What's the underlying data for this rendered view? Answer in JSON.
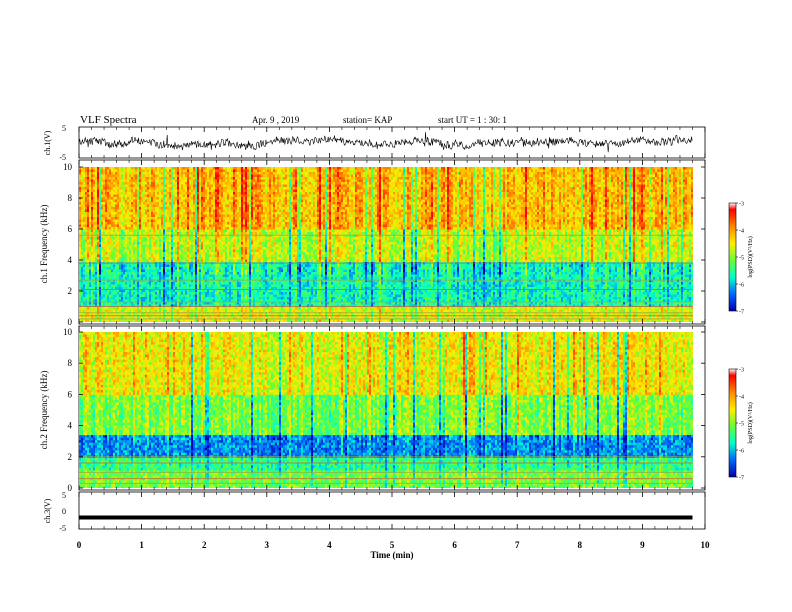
{
  "header": {
    "title": "VLF Spectra",
    "date": "Apr. 9 , 2019",
    "station": "station= KAP",
    "start_ut": "start UT = 1 : 30: 1"
  },
  "colorbar": {
    "label": "log(PSD)(V²/Hz)",
    "ticks": [
      "-3",
      "-4",
      "-5",
      "-6",
      "-7"
    ],
    "colors": [
      "#ff0000",
      "#ff8800",
      "#ffee00",
      "#66ff33",
      "#00ffcc",
      "#0066ff",
      "#0000aa"
    ]
  },
  "chart_data": [
    {
      "type": "line",
      "panel": "ch1-waveform",
      "ylabel": "ch.1(V)",
      "ylim": [
        -5,
        5
      ],
      "yticks": [
        "5",
        "-5"
      ],
      "x_range": [
        0,
        9.8
      ],
      "description_series": "noisy voltage trace oscillating around 0 V, roughly -2 V to +2 V"
    },
    {
      "type": "heatmap",
      "panel": "ch1-spectrogram",
      "ylabel": "ch.1 Frequency (kHz)",
      "ylim": [
        0,
        10
      ],
      "yticks": [
        "0",
        "2",
        "4",
        "6",
        "8",
        "10"
      ],
      "x_range": [
        0,
        9.8
      ],
      "z_range": [
        -7,
        -3
      ],
      "band_profile": [
        {
          "f_low": 0,
          "f_high": 1,
          "level": -4.5
        },
        {
          "f_low": 1,
          "f_high": 3.8,
          "level": -5.6
        },
        {
          "f_low": 3.8,
          "f_high": 6,
          "level": -4.6
        },
        {
          "f_low": 6,
          "f_high": 10,
          "level": -4.0
        }
      ],
      "tone_lines_khz": [
        0.2,
        0.4,
        0.6,
        1.0,
        1.3,
        2.1,
        2.7,
        3.8,
        5.6
      ]
    },
    {
      "type": "heatmap",
      "panel": "ch2-spectrogram",
      "ylabel": "ch.2 Frequency (kHz)",
      "ylim": [
        0,
        10
      ],
      "yticks": [
        "0",
        "2",
        "4",
        "6",
        "8",
        "10"
      ],
      "x_range": [
        0,
        9.8
      ],
      "z_range": [
        -7,
        -3
      ],
      "band_profile": [
        {
          "f_low": 0,
          "f_high": 1.2,
          "level": -5.0
        },
        {
          "f_low": 1.2,
          "f_high": 2,
          "level": -5.4
        },
        {
          "f_low": 2,
          "f_high": 3.4,
          "level": -6.2
        },
        {
          "f_low": 3.4,
          "f_high": 6,
          "level": -5.0
        },
        {
          "f_low": 6,
          "f_high": 10,
          "level": -4.4
        }
      ],
      "tone_lines_khz": [
        0.3,
        0.6,
        1.0,
        1.6,
        2.0
      ]
    },
    {
      "type": "line",
      "panel": "ch3-waveform",
      "ylabel": "ch.3(V)",
      "ylim": [
        -5,
        5
      ],
      "yticks": [
        "5",
        "0",
        "-5"
      ],
      "x_range": [
        0,
        9.8
      ],
      "constant_value": -1.5
    }
  ],
  "xaxis": {
    "label": "Time (min)",
    "ticks": [
      "0",
      "1",
      "2",
      "3",
      "4",
      "5",
      "6",
      "7",
      "8",
      "9",
      "10"
    ],
    "xlim": [
      0,
      10
    ]
  }
}
